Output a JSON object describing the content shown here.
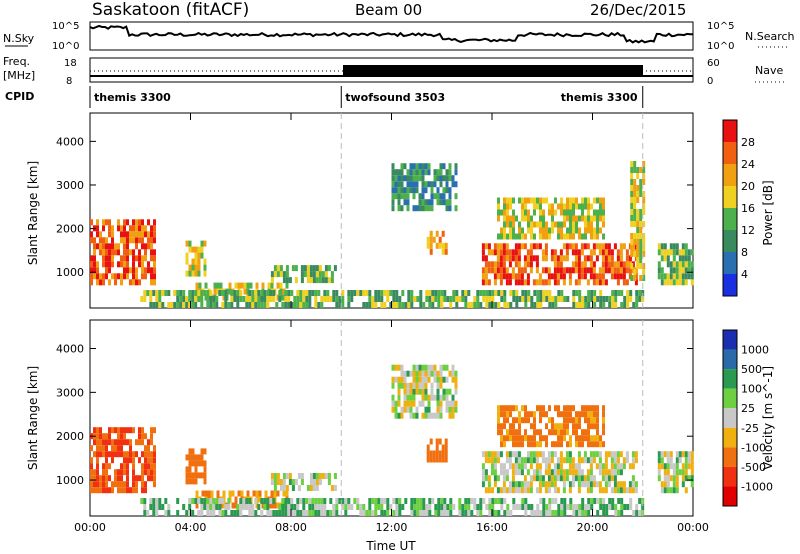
{
  "header": {
    "station": "Saskatoon (fitACF)",
    "beam": "Beam 00",
    "date": "26/Dec/2015"
  },
  "noise_panel": {
    "left_label": "N.Sky",
    "right_label": "N.Search",
    "left_ticks": [
      "10^5",
      "10^0"
    ],
    "right_ticks": [
      "10^5",
      "10^0"
    ]
  },
  "freq_panel": {
    "left_label_1": "Freq.",
    "left_label_2": "[MHz]",
    "right_label": "Nave",
    "left_ticks": [
      "18",
      "8"
    ],
    "right_ticks": [
      "60",
      "0"
    ]
  },
  "cpid": {
    "label": "CPID",
    "segments": [
      {
        "name": "themis 3300",
        "start_hour": 0,
        "end_hour": 10
      },
      {
        "name": "twofsound 3503",
        "start_hour": 10,
        "end_hour": 22
      },
      {
        "name": "themis 3300",
        "start_hour": 22,
        "end_hour": 24
      }
    ]
  },
  "chart_data": [
    {
      "type": "heatmap",
      "title": "",
      "xlabel": "Time UT",
      "ylabel": "Slant Range [km]",
      "xlim": [
        0,
        24
      ],
      "ylim": [
        180,
        4650
      ],
      "x_ticks": [
        "00:00",
        "04:00",
        "08:00",
        "12:00",
        "16:00",
        "20:00",
        "00:00"
      ],
      "y_ticks": [
        1000,
        2000,
        3000,
        4000
      ],
      "colorbar": {
        "label": "Power [dB]",
        "ticks": [
          4,
          8,
          12,
          16,
          20,
          24,
          28
        ],
        "colors": [
          "#1a2fe0",
          "#2a6fb0",
          "#3a8a60",
          "#4cb04c",
          "#f0d020",
          "#f0a010",
          "#f06010",
          "#e81010"
        ]
      },
      "echo_regions": [
        {
          "t0": 0.0,
          "t1": 2.6,
          "r0": 700,
          "r1": 2100,
          "level": 24
        },
        {
          "t0": 3.8,
          "t1": 4.6,
          "r0": 900,
          "r1": 1600,
          "level": 16
        },
        {
          "t0": 4.2,
          "t1": 7.8,
          "r0": 350,
          "r1": 750,
          "level": 16
        },
        {
          "t0": 7.2,
          "t1": 9.8,
          "r0": 750,
          "r1": 1150,
          "level": 12
        },
        {
          "t0": 12.0,
          "t1": 14.6,
          "r0": 2400,
          "r1": 3500,
          "level": 8
        },
        {
          "t0": 13.4,
          "t1": 14.2,
          "r0": 1400,
          "r1": 1900,
          "level": 18
        },
        {
          "t0": 15.6,
          "t1": 21.8,
          "r0": 700,
          "r1": 1600,
          "level": 22
        },
        {
          "t0": 16.2,
          "t1": 20.4,
          "r0": 1750,
          "r1": 2600,
          "level": 16
        },
        {
          "t0": 21.5,
          "t1": 22.0,
          "r0": 800,
          "r1": 3500,
          "level": 14
        },
        {
          "t0": 22.6,
          "t1": 24.0,
          "r0": 700,
          "r1": 1600,
          "level": 10
        },
        {
          "t0": 2.0,
          "t1": 22.0,
          "r0": 180,
          "r1": 520,
          "level": 12
        }
      ]
    },
    {
      "type": "heatmap",
      "title": "",
      "xlabel": "Time UT",
      "ylabel": "Slant Range [km]",
      "xlim": [
        0,
        24
      ],
      "ylim": [
        180,
        4650
      ],
      "x_ticks": [
        "00:00",
        "04:00",
        "08:00",
        "12:00",
        "16:00",
        "20:00",
        "00:00"
      ],
      "y_ticks": [
        1000,
        2000,
        3000,
        4000
      ],
      "colorbar": {
        "label": "Velocity [m s^-1]",
        "ticks": [
          "1000",
          "500",
          "100",
          "25",
          "-25",
          "-100",
          "-500",
          "-1000"
        ],
        "colors": [
          "#1a2fb0",
          "#2a6aa8",
          "#2a9a50",
          "#6cd040",
          "#c8c8c8",
          "#f0b010",
          "#f07010",
          "#f03010",
          "#e00000"
        ]
      },
      "echo_regions": [
        {
          "t0": 0.0,
          "t1": 2.6,
          "r0": 700,
          "r1": 2100,
          "vel": -300
        },
        {
          "t0": 3.8,
          "t1": 4.6,
          "r0": 900,
          "r1": 1600,
          "vel": -200
        },
        {
          "t0": 4.2,
          "t1": 7.8,
          "r0": 350,
          "r1": 750,
          "vel": -100
        },
        {
          "t0": 7.2,
          "t1": 9.8,
          "r0": 750,
          "r1": 1150,
          "vel": 0
        },
        {
          "t0": 12.0,
          "t1": 14.6,
          "r0": 2400,
          "r1": 3500,
          "vel": 0
        },
        {
          "t0": 13.4,
          "t1": 14.2,
          "r0": 1400,
          "r1": 1900,
          "vel": -200
        },
        {
          "t0": 15.6,
          "t1": 21.8,
          "r0": 700,
          "r1": 1600,
          "vel": 0
        },
        {
          "t0": 16.2,
          "t1": 20.4,
          "r0": 1750,
          "r1": 2600,
          "vel": -150
        },
        {
          "t0": 22.6,
          "t1": 24.0,
          "r0": 700,
          "r1": 1600,
          "vel": 0
        },
        {
          "t0": 2.0,
          "t1": 22.0,
          "r0": 180,
          "r1": 520,
          "vel": 50
        }
      ]
    }
  ]
}
